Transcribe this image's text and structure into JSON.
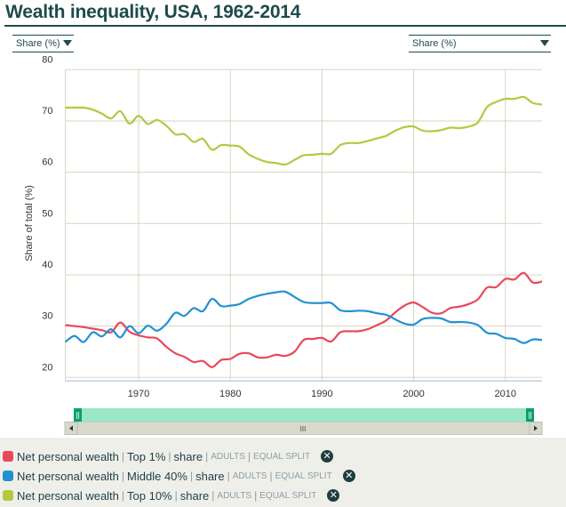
{
  "title": "Wealth inequality, USA, 1962-2014",
  "selectors": {
    "left": "Share (%)",
    "right": "Share (%)"
  },
  "chart_data": {
    "type": "line",
    "title": "Wealth inequality, USA, 1962-2014",
    "ylabel": "Share of total (%)",
    "xlabel": "",
    "ylim": [
      20,
      80
    ],
    "xlim": [
      1962,
      2014
    ],
    "yticks": [
      20,
      30,
      40,
      50,
      60,
      70,
      80
    ],
    "xticks": [
      1970,
      1980,
      1990,
      2000,
      2010
    ],
    "grid": true,
    "x": [
      1962,
      1963,
      1964,
      1965,
      1966,
      1967,
      1968,
      1969,
      1970,
      1971,
      1972,
      1973,
      1974,
      1975,
      1976,
      1977,
      1978,
      1979,
      1980,
      1981,
      1982,
      1983,
      1984,
      1985,
      1986,
      1987,
      1988,
      1989,
      1990,
      1991,
      1992,
      1993,
      1994,
      1995,
      1996,
      1997,
      1998,
      1999,
      2000,
      2001,
      2002,
      2003,
      2004,
      2005,
      2006,
      2007,
      2008,
      2009,
      2010,
      2011,
      2012,
      2013,
      2014
    ],
    "series": [
      {
        "name": "Net personal wealth | Top 1% | share | ADULTS | EQUAL SPLIT",
        "color": "#e8485a",
        "values": [
          30.2,
          30.0,
          29.8,
          29.5,
          29.2,
          28.8,
          30.7,
          28.9,
          28.2,
          27.8,
          27.6,
          26.0,
          24.7,
          24.0,
          23.0,
          23.2,
          22.0,
          23.4,
          23.6,
          24.6,
          24.7,
          23.9,
          23.9,
          24.4,
          24.2,
          25.0,
          27.3,
          27.5,
          27.7,
          27.0,
          28.8,
          29.0,
          29.0,
          29.4,
          30.2,
          31.1,
          32.7,
          34.0,
          34.6,
          33.7,
          32.6,
          32.5,
          33.5,
          33.8,
          34.3,
          35.2,
          37.5,
          37.6,
          39.2,
          39.1,
          40.4,
          38.5,
          38.7
        ]
      },
      {
        "name": "Net personal wealth | Middle 40% | share | ADULTS | EQUAL SPLIT",
        "color": "#2291d3",
        "values": [
          26.9,
          28.1,
          26.9,
          28.8,
          28.0,
          29.4,
          27.8,
          30.0,
          28.6,
          30.1,
          29.1,
          30.4,
          32.6,
          32.0,
          33.5,
          32.9,
          35.3,
          33.9,
          34.0,
          34.3,
          35.3,
          35.9,
          36.3,
          36.6,
          36.7,
          35.7,
          34.7,
          34.5,
          34.5,
          34.5,
          33.1,
          32.9,
          33.0,
          32.9,
          32.5,
          32.2,
          31.3,
          30.5,
          30.3,
          31.4,
          31.6,
          31.5,
          30.8,
          30.8,
          30.7,
          30.2,
          28.7,
          28.5,
          27.7,
          27.5,
          26.7,
          27.4,
          27.3
        ]
      },
      {
        "name": "Net personal wealth | Top 10% | share | ADULTS | EQUAL SPLIT",
        "color": "#b5c840",
        "values": [
          72.6,
          72.6,
          72.6,
          72.2,
          71.4,
          70.5,
          71.9,
          69.5,
          71.0,
          69.4,
          70.2,
          69.1,
          67.4,
          67.4,
          65.9,
          66.5,
          64.4,
          65.3,
          65.2,
          65.0,
          63.5,
          62.6,
          62.0,
          61.8,
          61.5,
          62.4,
          63.3,
          63.4,
          63.6,
          63.6,
          65.3,
          65.7,
          65.7,
          66.1,
          66.6,
          67.1,
          68.1,
          68.8,
          68.9,
          68.1,
          68.0,
          68.2,
          68.7,
          68.6,
          68.9,
          69.7,
          72.7,
          73.7,
          74.3,
          74.3,
          74.7,
          73.5,
          73.2
        ]
      }
    ]
  },
  "navigator": {
    "range": [
      1962,
      2014
    ],
    "color": "#9be6c5",
    "handle_color": "#0aa06b"
  },
  "legend": [
    {
      "metric": "Net personal wealth",
      "group": "Top 1%",
      "kind": "share",
      "population": "ADULTS",
      "split": "EQUAL SPLIT",
      "color": "#e8485a",
      "remove_icon": "close-circle-icon"
    },
    {
      "metric": "Net personal wealth",
      "group": "Middle 40%",
      "kind": "share",
      "population": "ADULTS",
      "split": "EQUAL SPLIT",
      "color": "#2291d3",
      "remove_icon": "close-circle-icon"
    },
    {
      "metric": "Net personal wealth",
      "group": "Top 10%",
      "kind": "share",
      "population": "ADULTS",
      "split": "EQUAL SPLIT",
      "color": "#b5c840",
      "remove_icon": "close-circle-icon"
    }
  ],
  "close_glyph": "✕",
  "scroll_grip": "III"
}
